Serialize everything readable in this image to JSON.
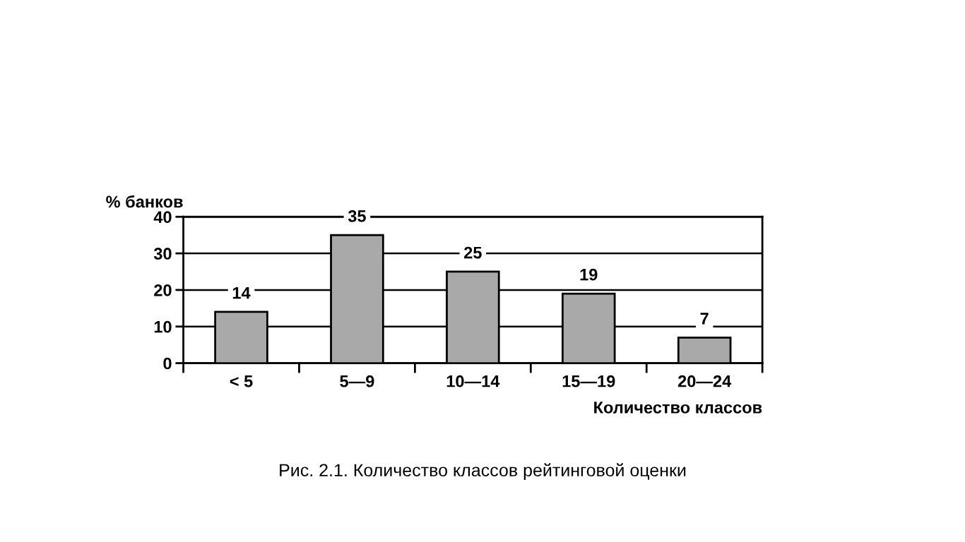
{
  "chart_data": {
    "type": "bar",
    "title": "Рис. 2.1. Количество классов рейтинговой оценки",
    "ylabel": "% банков",
    "xlabel": "Количество классов",
    "categories": [
      "< 5",
      "5—9",
      "10—14",
      "15—19",
      "20—24"
    ],
    "values": [
      14,
      35,
      25,
      19,
      7
    ],
    "color": "#a9a9a9",
    "ylim": [
      0,
      40
    ],
    "yticks": [
      0,
      10,
      20,
      30,
      40
    ],
    "grid": "y",
    "data_labels": true
  }
}
